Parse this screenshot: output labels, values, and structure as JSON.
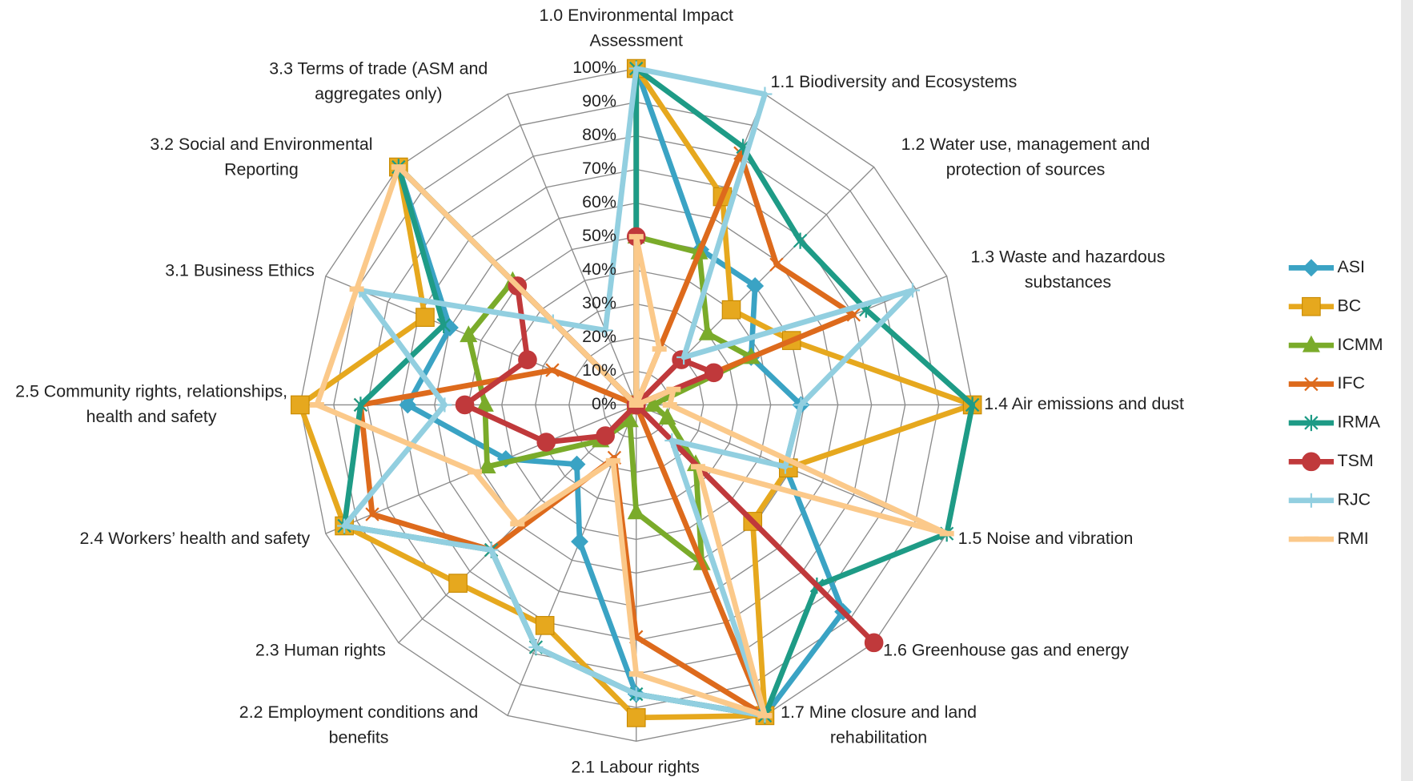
{
  "chart_data": {
    "type": "radar",
    "categories": [
      "1.0 Environmental Impact Assessment",
      "1.1 Biodiversity and Ecosystems",
      "1.2 Water use, management and protection of sources",
      "1.3 Waste and hazardous substances",
      "1.4 Air emissions and dust",
      "1.5 Noise and vibration",
      "1.6 Greenhouse gas and energy",
      "1.7 Mine closure and land rehabilitation",
      "2.1 Labour rights",
      "2.2 Employment conditions and benefits",
      "2.3 Human rights",
      "2.4 Workers’ health and safety",
      "2.5 Community rights, relationships, health and safety",
      "3.1 Business Ethics",
      "3.2 Social and Environmental Reporting",
      "3.3 Terms of trade (ASM and aggregates only)"
    ],
    "ylim": [
      0,
      100
    ],
    "yticks": [
      {
        "value": 0,
        "label": "0%"
      },
      {
        "value": 10,
        "label": "10%"
      },
      {
        "value": 20,
        "label": "20%"
      },
      {
        "value": 30,
        "label": "30%"
      },
      {
        "value": 40,
        "label": "40%"
      },
      {
        "value": 50,
        "label": "50%"
      },
      {
        "value": 60,
        "label": "60%"
      },
      {
        "value": 70,
        "label": "70%"
      },
      {
        "value": 80,
        "label": "80%"
      },
      {
        "value": 90,
        "label": "90%"
      },
      {
        "value": 100,
        "label": "100%"
      }
    ],
    "grid": true,
    "legend": "right",
    "series": [
      {
        "name": "ASI",
        "color": "#3aa3c4",
        "marker": "diamond",
        "values": [
          100,
          50,
          50,
          37,
          49,
          48,
          87,
          100,
          86,
          44,
          25,
          42,
          68,
          60,
          100,
          0
        ]
      },
      {
        "name": "BC",
        "color": "#e6a81e",
        "marker": "square",
        "values": [
          100,
          67,
          40,
          50,
          100,
          49,
          49,
          100,
          93,
          71,
          75,
          94,
          100,
          68,
          100,
          0
        ]
      },
      {
        "name": "ICMM",
        "color": "#7aab2a",
        "marker": "triangle",
        "values": [
          50,
          49,
          30,
          37,
          5,
          10,
          25,
          51,
          32,
          5,
          15,
          48,
          45,
          54,
          52,
          0
        ]
      },
      {
        "name": "IFC",
        "color": "#dd6a1c",
        "marker": "x",
        "values": [
          0,
          81,
          59,
          70,
          0,
          0,
          0,
          100,
          69,
          17,
          61,
          85,
          82,
          27,
          0,
          0
        ]
      },
      {
        "name": "IRMA",
        "color": "#1e9b86",
        "marker": "star",
        "values": [
          100,
          83,
          69,
          74,
          100,
          100,
          76,
          100,
          86,
          78,
          61,
          94,
          82,
          62,
          100,
          0
        ]
      },
      {
        "name": "TSM",
        "color": "#c0393b",
        "marker": "circle",
        "values": [
          50,
          0,
          19,
          25,
          0,
          0,
          100,
          0,
          0,
          0,
          13,
          29,
          51,
          35,
          50,
          0
        ]
      },
      {
        "name": "RJC",
        "color": "#92cfe0",
        "marker": "plus",
        "values": [
          100,
          100,
          20,
          89,
          49,
          48,
          15,
          100,
          86,
          78,
          61,
          94,
          57,
          89,
          35,
          24
        ]
      },
      {
        "name": "RMI",
        "color": "#fbc98a",
        "marker": "dash",
        "values": [
          50,
          18,
          0,
          12,
          10,
          100,
          26,
          100,
          80,
          18,
          50,
          52,
          95,
          90,
          100,
          0
        ]
      }
    ]
  }
}
